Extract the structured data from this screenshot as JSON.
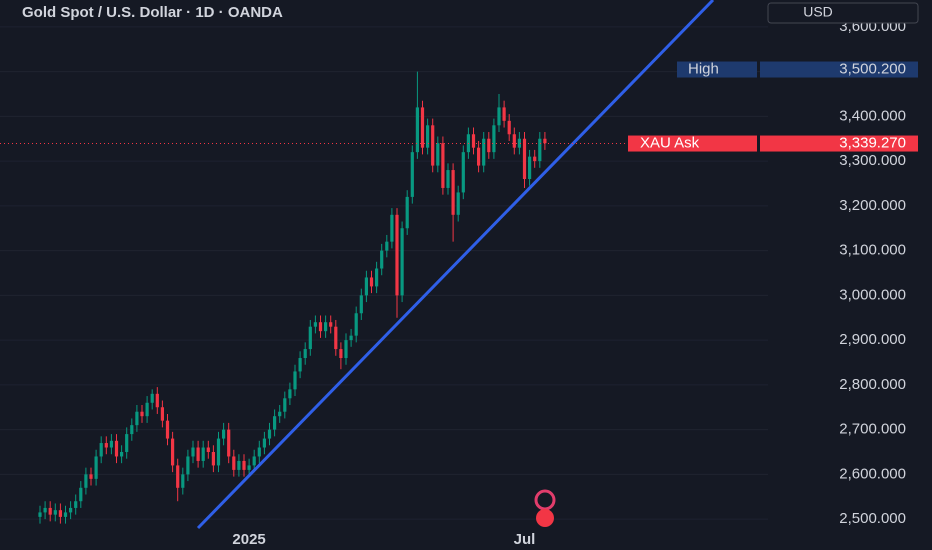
{
  "chart_data": {
    "type": "candlestick",
    "title": "Gold Spot / U.S. Dollar · 1D · OANDA",
    "currency": "USD",
    "categories": [
      null,
      null,
      null,
      null,
      null,
      null,
      null,
      null,
      null,
      null,
      null,
      null,
      null,
      null,
      null,
      null,
      null,
      null,
      null,
      null,
      null,
      null,
      null,
      null,
      null,
      null,
      null,
      null,
      null,
      null,
      null,
      null,
      null,
      null,
      null,
      null,
      null,
      null,
      null,
      null,
      null,
      "2025",
      null,
      null,
      null,
      null,
      null,
      null,
      null,
      null,
      null,
      null,
      null,
      null,
      null,
      null,
      null,
      null,
      null,
      null,
      null,
      null,
      null,
      null,
      null,
      null,
      null,
      null,
      null,
      null,
      null,
      null,
      null,
      null,
      null,
      null,
      null,
      null,
      null,
      null,
      null,
      null,
      null,
      null,
      null,
      null,
      null,
      null,
      null,
      null,
      null,
      null,
      null,
      null,
      null,
      "Jul",
      null,
      null,
      null,
      null
    ],
    "open": [
      2505,
      2515,
      2525,
      2510,
      2520,
      2505,
      2515,
      2525,
      2540,
      2570,
      2600,
      2590,
      2640,
      2670,
      2660,
      2675,
      2640,
      2650,
      2690,
      2710,
      2740,
      2730,
      2760,
      2780,
      2750,
      2720,
      2680,
      2620,
      2570,
      2600,
      2640,
      2660,
      2630,
      2660,
      2650,
      2620,
      2680,
      2700,
      2640,
      2610,
      2630,
      2610,
      2620,
      2640,
      2660,
      2680,
      2700,
      2730,
      2740,
      2770,
      2790,
      2830,
      2860,
      2880,
      2930,
      2940,
      2920,
      2940,
      2930,
      2880,
      2860,
      2900,
      2910,
      2960,
      3000,
      3040,
      3020,
      3060,
      3100,
      3120,
      3180,
      3000,
      3150,
      3220,
      3320,
      3420,
      3330,
      3380,
      3290,
      3340,
      3240,
      3280,
      3180,
      3230,
      3320,
      3360,
      3330,
      3290,
      3350,
      3320,
      3380,
      3420,
      3390,
      3360,
      3330,
      3350,
      3260,
      3310,
      3300,
      3350
    ],
    "high": [
      2530,
      2540,
      2540,
      2535,
      2535,
      2530,
      2540,
      2555,
      2585,
      2615,
      2615,
      2655,
      2685,
      2685,
      2690,
      2690,
      2665,
      2705,
      2725,
      2755,
      2755,
      2775,
      2790,
      2795,
      2765,
      2735,
      2695,
      2635,
      2615,
      2655,
      2675,
      2675,
      2675,
      2675,
      2665,
      2695,
      2715,
      2715,
      2655,
      2645,
      2645,
      2635,
      2655,
      2675,
      2695,
      2715,
      2745,
      2755,
      2785,
      2805,
      2845,
      2875,
      2895,
      2945,
      2955,
      2955,
      2955,
      2955,
      2945,
      2895,
      2915,
      2925,
      2975,
      3015,
      3055,
      3055,
      3075,
      3115,
      3135,
      3195,
      3195,
      3165,
      3235,
      3335,
      3500,
      3435,
      3395,
      3395,
      3355,
      3355,
      3295,
      3295,
      3245,
      3335,
      3375,
      3375,
      3345,
      3365,
      3365,
      3395,
      3450,
      3435,
      3405,
      3375,
      3365,
      3365,
      3325,
      3325,
      3365,
      3365
    ],
    "low": [
      2490,
      2500,
      2495,
      2495,
      2490,
      2490,
      2500,
      2510,
      2525,
      2555,
      2575,
      2575,
      2625,
      2645,
      2645,
      2625,
      2625,
      2635,
      2675,
      2695,
      2715,
      2715,
      2745,
      2735,
      2705,
      2665,
      2605,
      2540,
      2555,
      2585,
      2625,
      2615,
      2615,
      2635,
      2605,
      2605,
      2665,
      2625,
      2595,
      2595,
      2595,
      2595,
      2605,
      2625,
      2645,
      2665,
      2685,
      2715,
      2725,
      2755,
      2775,
      2815,
      2845,
      2865,
      2915,
      2905,
      2905,
      2915,
      2865,
      2835,
      2845,
      2885,
      2895,
      2945,
      2985,
      3005,
      3005,
      3045,
      3085,
      3105,
      2950,
      2985,
      3135,
      3205,
      3305,
      3315,
      3315,
      3275,
      3275,
      3225,
      3225,
      3120,
      3165,
      3215,
      3305,
      3315,
      3275,
      3275,
      3305,
      3305,
      3365,
      3375,
      3345,
      3315,
      3315,
      3240,
      3245,
      3285,
      3285,
      3325
    ],
    "close": [
      2515,
      2525,
      2510,
      2520,
      2505,
      2515,
      2525,
      2540,
      2570,
      2600,
      2590,
      2640,
      2670,
      2660,
      2675,
      2640,
      2650,
      2690,
      2710,
      2740,
      2730,
      2760,
      2780,
      2750,
      2720,
      2680,
      2620,
      2570,
      2600,
      2640,
      2660,
      2630,
      2660,
      2650,
      2620,
      2680,
      2700,
      2640,
      2610,
      2630,
      2610,
      2620,
      2640,
      2660,
      2680,
      2700,
      2730,
      2740,
      2770,
      2790,
      2830,
      2860,
      2880,
      2930,
      2940,
      2920,
      2940,
      2930,
      2880,
      2860,
      2900,
      2910,
      2960,
      3000,
      3040,
      3020,
      3060,
      3100,
      3120,
      3180,
      3000,
      3150,
      3220,
      3320,
      3420,
      3330,
      3380,
      3290,
      3340,
      3240,
      3280,
      3180,
      3230,
      3320,
      3360,
      3330,
      3290,
      3350,
      3320,
      3380,
      3420,
      3390,
      3360,
      3330,
      3350,
      3260,
      3310,
      3300,
      3350,
      3340
    ],
    "up_color": "#089981",
    "down_color": "#f23645",
    "ylim": [
      2431,
      3660
    ],
    "yticks": [
      {
        "value": 2500,
        "label": "2,500.000"
      },
      {
        "value": 2600,
        "label": "2,600.000"
      },
      {
        "value": 2700,
        "label": "2,700.000"
      },
      {
        "value": 2800,
        "label": "2,800.000"
      },
      {
        "value": 2900,
        "label": "2,900.000"
      },
      {
        "value": 3000,
        "label": "3,000.000"
      },
      {
        "value": 3100,
        "label": "3,100.000"
      },
      {
        "value": 3200,
        "label": "3,200.000"
      },
      {
        "value": 3300,
        "label": "3,300.000"
      },
      {
        "value": 3400,
        "label": "3,400.000"
      },
      {
        "value": 3500,
        "label": "3,500.000"
      },
      {
        "value": 3600,
        "label": "3,600.000"
      }
    ],
    "grid": true,
    "high_marker": {
      "label": "High",
      "value": 3500.2,
      "value_label": "3,500.200",
      "color": "#1e3a6e"
    },
    "ask_marker": {
      "label": "XAU Ask",
      "value": 3339.27,
      "value_label": "3,339.270",
      "color": "#f23645"
    }
  }
}
